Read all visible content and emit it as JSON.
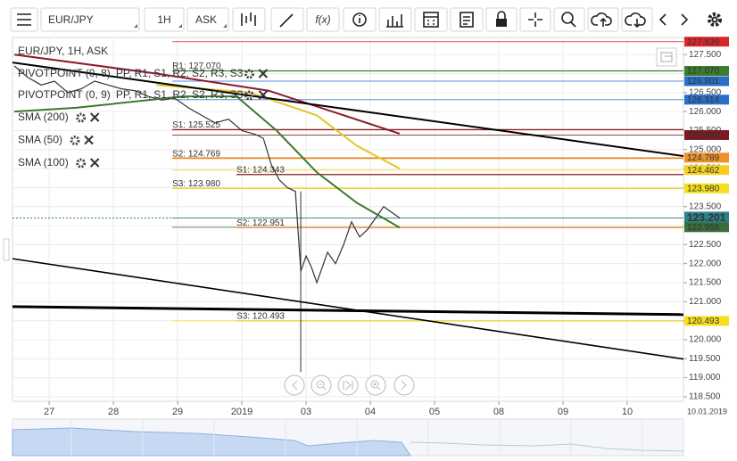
{
  "toolbar": {
    "symbol": "EUR/JPY",
    "timeframe": "1H",
    "side": "ASK",
    "function_button": "f(x)"
  },
  "chart_data": {
    "type": "line",
    "xlim": [
      -13.7,
      237
    ],
    "ylim": [
      118.38,
      127.95
    ],
    "grid": true,
    "xticks": [
      {
        "value": 0,
        "label": "27"
      },
      {
        "value": 24,
        "label": "28"
      },
      {
        "value": 48,
        "label": "29"
      },
      {
        "value": 72,
        "label": "2019"
      },
      {
        "value": 96,
        "label": "03"
      },
      {
        "value": 120,
        "label": "04"
      },
      {
        "value": 144,
        "label": "05"
      },
      {
        "value": 168,
        "label": "08"
      },
      {
        "value": 192,
        "label": "09"
      },
      {
        "value": 216,
        "label": "10"
      }
    ],
    "x_corner_label": "10.01.2019",
    "yticks": [
      {
        "value": 127.5,
        "label": "127.500"
      },
      {
        "value": 127,
        "label": "127.000"
      },
      {
        "value": 126.5,
        "label": "126.500"
      },
      {
        "value": 126,
        "label": "126.000"
      },
      {
        "value": 125.5,
        "label": "125.500"
      },
      {
        "value": 125,
        "label": "125.000"
      },
      {
        "value": 124.5,
        "label": "124.500"
      },
      {
        "value": 124,
        "label": "124.000"
      },
      {
        "value": 123.5,
        "label": "123.500"
      },
      {
        "value": 123,
        "label": "123.000"
      },
      {
        "value": 122.5,
        "label": "122.500"
      },
      {
        "value": 122,
        "label": "122.000"
      },
      {
        "value": 121.5,
        "label": "121.500"
      },
      {
        "value": 121,
        "label": "121.000"
      },
      {
        "value": 120.5,
        "label": "120.500"
      },
      {
        "value": 120,
        "label": "120.000"
      },
      {
        "value": 119.5,
        "label": "119.500"
      },
      {
        "value": 119,
        "label": "119.000"
      },
      {
        "value": 118.5,
        "label": "118.500"
      }
    ],
    "series": [
      {
        "name": "EUR/JPY, 1H, ASK",
        "color": "#333333",
        "x": [
          -13,
          -8,
          -3,
          2,
          7,
          12,
          17,
          22,
          27,
          32,
          37,
          42,
          47,
          52,
          57,
          62,
          67,
          72,
          77,
          80,
          83,
          86,
          89,
          92,
          94,
          96,
          98,
          100,
          102,
          104,
          107,
          110,
          113,
          116,
          119,
          122,
          125,
          128,
          131
        ],
        "values": [
          127.2,
          126.9,
          126.7,
          126.8,
          126.5,
          126.6,
          126.8,
          126.7,
          126.6,
          126.55,
          126.4,
          126.3,
          126.35,
          126.1,
          125.9,
          125.7,
          125.8,
          125.5,
          125.4,
          125.3,
          124.6,
          124.2,
          124.0,
          123.9,
          121.8,
          122.2,
          121.9,
          121.5,
          121.9,
          122.3,
          122.0,
          122.5,
          123.1,
          122.7,
          122.9,
          123.2,
          123.5,
          123.35,
          123.2
        ]
      },
      {
        "name": "SMA (200)",
        "color": "#8b1a2b",
        "x": [
          -13,
          40,
          82,
          131
        ],
        "values": [
          127.5,
          127.0,
          126.55,
          125.42
        ]
      },
      {
        "name": "SMA (50)",
        "color": "#3d7a2e",
        "x": [
          -13,
          10,
          50,
          70,
          85,
          100,
          115,
          131
        ],
        "values": [
          126.0,
          126.1,
          126.4,
          126.4,
          125.5,
          124.4,
          123.6,
          122.95
        ]
      },
      {
        "name": "SMA (100)",
        "color": "#e2c62a",
        "x": [
          40,
          75,
          100,
          115,
          131
        ],
        "values": [
          126.7,
          126.5,
          125.9,
          125.1,
          124.5
        ]
      }
    ],
    "wicks": [
      {
        "x": 94,
        "high": 123.9,
        "low": 119.15
      }
    ],
    "pivot_indicators": [
      {
        "name": "PIVOTPOINT (0, 8)",
        "items": [
          {
            "text": "PP,",
            "color": "#4a90d9"
          },
          {
            "text": "R1,",
            "color": "#3a7d2c"
          },
          {
            "text": "S1,",
            "color": "#d9262b"
          },
          {
            "text": "R2,",
            "color": "#d9262b"
          },
          {
            "text": "S2,",
            "color": "#f0922b"
          },
          {
            "text": "R3,",
            "color": "#e8a020"
          },
          {
            "text": "S3",
            "color": "#e8d21a"
          }
        ]
      },
      {
        "name": "PIVOTPOINT (0, 9)",
        "items": [
          {
            "text": "PP,",
            "color": "#4a90d9"
          },
          {
            "text": "R1,",
            "color": "#3a7d2c"
          },
          {
            "text": "S1,",
            "color": "#d9262b"
          },
          {
            "text": "R2,",
            "color": "#d9262b"
          },
          {
            "text": "S2,",
            "color": "#f0922b"
          },
          {
            "text": "R3,",
            "color": "#e8a020"
          },
          {
            "text": "S3",
            "color": "#e8d21a"
          }
        ]
      }
    ],
    "levels": [
      {
        "label": "R1: 127.070",
        "value": 127.07,
        "color": "#3a7d2c",
        "x": 46
      },
      {
        "label": "S1: 125.525",
        "value": 125.525,
        "color": "#8b1a1a",
        "x": 46
      },
      {
        "label": "S2: 124.769",
        "value": 124.769,
        "color": "#e08a1e",
        "x": 46
      },
      {
        "label": "S1: 124.343",
        "value": 124.343,
        "color": "#8b1a1a",
        "x": 70
      },
      {
        "label": "S3: 123.980",
        "value": 123.98,
        "color": "#e8d21a",
        "x": 46
      },
      {
        "label": "S2: 122.951",
        "value": 122.951,
        "color": "#e08a1e",
        "x": 70
      },
      {
        "label": "S3: 120.493",
        "value": 120.493,
        "color": "#e8d21a",
        "x": 70
      }
    ],
    "trendlines": [
      {
        "x": [
          -13.7,
          237
        ],
        "values": [
          127.29,
          124.83
        ]
      },
      {
        "x": [
          -13.7,
          237
        ],
        "values": [
          122.13,
          119.49
        ]
      },
      {
        "x": [
          -13.7,
          237
        ],
        "values": [
          120.87,
          120.66
        ]
      }
    ],
    "current_price": 123.201,
    "price_tags": [
      {
        "value": 127.839,
        "label": "127.839",
        "color": "#d9262b",
        "text_color": "#ffffff"
      },
      {
        "value": 127.07,
        "label": "127.070",
        "color": "#3a7d2c",
        "text_color": "#ffffff"
      },
      {
        "value": 126.801,
        "label": "126.801",
        "color": "#2a6fc9",
        "text_color": "#ffffff"
      },
      {
        "value": 126.314,
        "label": "126.314",
        "color": "#2a6fc9",
        "text_color": "#ffffff"
      },
      {
        "value": 125.383,
        "label": "125.383",
        "color": "#7a1a22",
        "text_color": "#ffffff"
      },
      {
        "value": 124.789,
        "label": "124.789",
        "color": "#f0922b",
        "text_color": "#ffffff"
      },
      {
        "value": 124.462,
        "label": "124.462",
        "color": "#f5d020",
        "text_color": "#222222"
      },
      {
        "value": 123.98,
        "label": "123.980",
        "color": "#f5e020",
        "text_color": "#222222"
      },
      {
        "value": 123.201,
        "label": "123.201",
        "color": "#2d7f8a",
        "text_color": "#ffffff"
      },
      {
        "value": 122.958,
        "label": "122.958",
        "color": "#3b6e3b",
        "text_color": "#ffffff"
      },
      {
        "value": 120.493,
        "label": "120.493",
        "color": "#f5e020",
        "text_color": "#222222"
      }
    ]
  }
}
